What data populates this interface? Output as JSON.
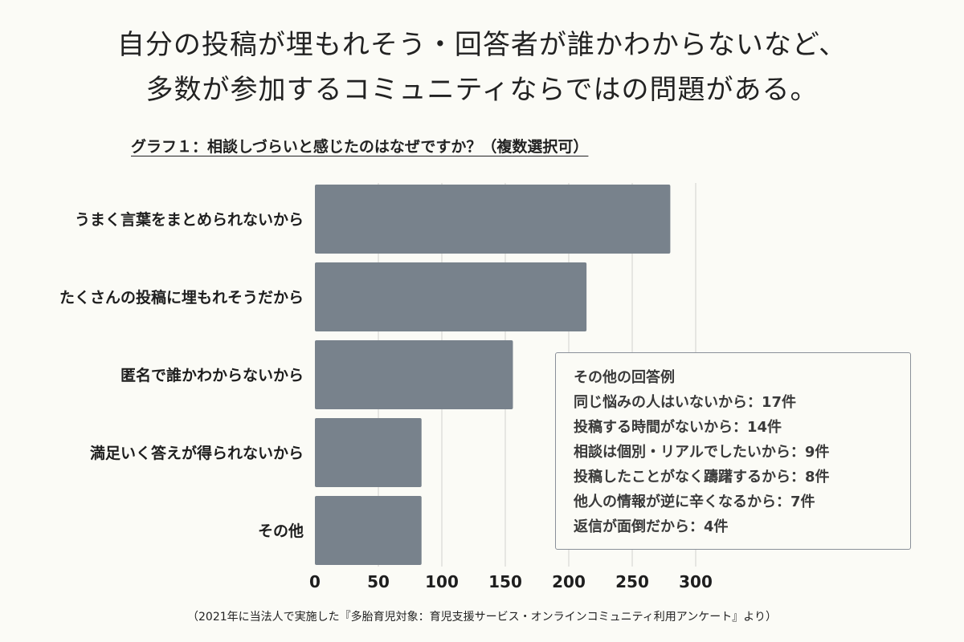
{
  "headline": {
    "line1": "自分の投稿が埋もれそう・回答者が誰かわからないなど、",
    "line2": "多数が参加するコミュニティならではの問題がある。"
  },
  "chart_data": {
    "type": "bar",
    "orientation": "horizontal",
    "title": "グラフ１：相談しづらいと感じたのはなぜですか？（複数選択可）",
    "categories": [
      "うまく言葉をまとめられないから",
      "たくさんの投稿に埋もれそうだから",
      "匿名で誰かわからないから",
      "満足いく答えが得られないから",
      "その他"
    ],
    "values": [
      280,
      214,
      156,
      84,
      84
    ],
    "xlim": [
      0,
      300
    ],
    "xticks": [
      0,
      50,
      100,
      150,
      200,
      250,
      300
    ],
    "xlabel": "",
    "ylabel": "",
    "grid": "vertical",
    "bar_color": "#78828c"
  },
  "note": {
    "heading": "その他の回答例",
    "items": [
      "同じ悩みの人はいないから：17件",
      "投稿する時間がないから：14件",
      "相談は個別・リアルでしたいから：9件",
      "投稿したことがなく躊躇するから：8件",
      "他人の情報が逆に辛くなるから：7件",
      "返信が面倒だから：4件"
    ]
  },
  "source": "（2021年に当法人で実施した『多胎育児対象：育児支援サービス・オンラインコミュニティ利用アンケート』より）"
}
